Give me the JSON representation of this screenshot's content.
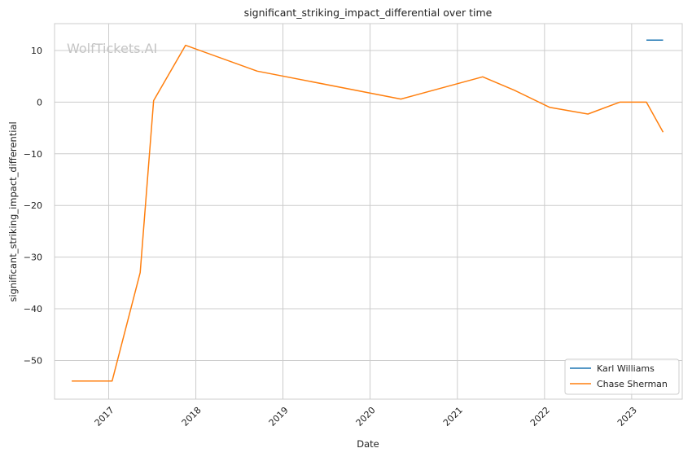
{
  "watermark": "WolfTickets.AI",
  "chart_data": {
    "type": "line",
    "title": "significant_striking_impact_differential over time",
    "xlabel": "Date",
    "ylabel": "significant_striking_impact_differential",
    "xlim": [
      "2016-05-19",
      "2023-08-01"
    ],
    "ylim": [
      -57.5,
      15.2
    ],
    "x_ticks": [
      "2017",
      "2018",
      "2019",
      "2020",
      "2021",
      "2022",
      "2023"
    ],
    "y_ticks": [
      10,
      0,
      -10,
      -20,
      -30,
      -40,
      -50
    ],
    "y_tick_labels": [
      "10",
      "0",
      "−10",
      "−20",
      "−30",
      "−40",
      "−50"
    ],
    "grid": true,
    "legend_position": "lower-right",
    "series": [
      {
        "name": "Karl Williams",
        "color": "#1f77b4",
        "points": [
          [
            "2023-03-04",
            12
          ],
          [
            "2023-05-13",
            12
          ]
        ]
      },
      {
        "name": "Chase Sherman",
        "color": "#ff7f0e",
        "points": [
          [
            "2016-07-30",
            -54
          ],
          [
            "2017-01-15",
            -54
          ],
          [
            "2017-05-13",
            -33
          ],
          [
            "2017-07-08",
            0.3
          ],
          [
            "2017-11-19",
            11
          ],
          [
            "2018-09-15",
            6
          ],
          [
            "2020-05-09",
            0.6
          ],
          [
            "2021-04-17",
            4.9
          ],
          [
            "2021-08-28",
            2.3
          ],
          [
            "2022-01-22",
            -1
          ],
          [
            "2022-07-02",
            -2.3
          ],
          [
            "2022-11-12",
            0
          ],
          [
            "2023-03-04",
            0
          ],
          [
            "2023-05-13",
            -5.8
          ]
        ]
      }
    ]
  }
}
